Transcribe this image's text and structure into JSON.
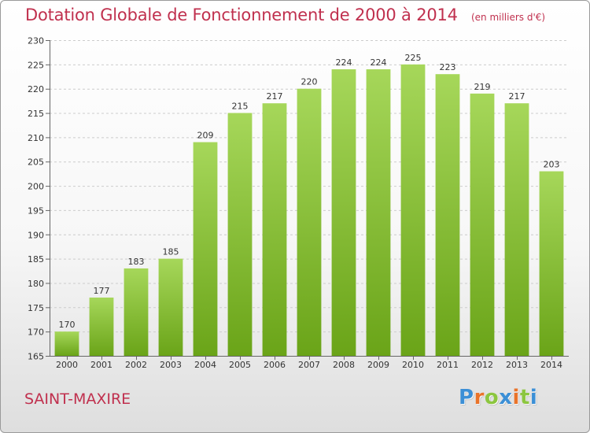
{
  "header": {
    "title": "Dotation Globale de Fonctionnement de 2000 à 2014",
    "subtitle": "(en milliers d'€)"
  },
  "commune": "SAINT-MAXIRE",
  "logo": {
    "letters": [
      "P",
      "r",
      "o",
      "x",
      "i",
      "t",
      "i"
    ],
    "colors": [
      "#3b8fd6",
      "#e9732a",
      "#8cc63f",
      "#3b8fd6",
      "#e9732a",
      "#8cc63f",
      "#3b8fd6"
    ]
  },
  "chart_data": {
    "type": "bar",
    "title": "Dotation Globale de Fonctionnement de 2000 à 2014",
    "subtitle": "(en milliers d'€)",
    "categories": [
      "2000",
      "2001",
      "2002",
      "2003",
      "2004",
      "2005",
      "2006",
      "2007",
      "2008",
      "2009",
      "2010",
      "2011",
      "2012",
      "2013",
      "2014"
    ],
    "values": [
      170,
      177,
      183,
      185,
      209,
      215,
      217,
      220,
      224,
      224,
      225,
      223,
      219,
      217,
      203
    ],
    "ylim": [
      165,
      230
    ],
    "yticks": [
      165,
      170,
      175,
      180,
      185,
      190,
      195,
      200,
      205,
      210,
      215,
      220,
      225,
      230
    ],
    "grid": "horizontal dashed",
    "bar_color_top": "#a6d75a",
    "bar_color_bottom": "#6aa418",
    "data_labels": true
  }
}
